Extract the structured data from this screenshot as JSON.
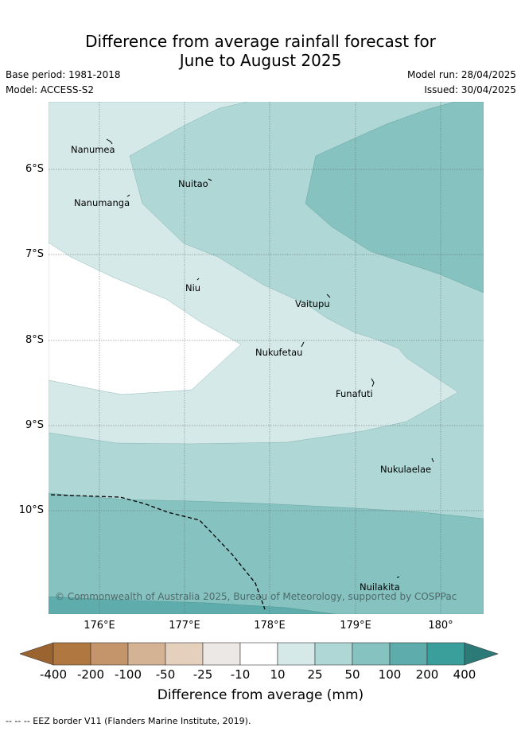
{
  "title": {
    "line1": "Difference from average rainfall forecast for",
    "line2": "June to August 2025"
  },
  "meta": {
    "base_period": "Base period: 1981-2018",
    "model": "Model: ACCESS-S2",
    "model_run": "Model run: 28/04/2025",
    "issued": "Issued: 30/04/2025"
  },
  "axes": {
    "y_ticks": [
      "6°S",
      "7°S",
      "8°S",
      "9°S",
      "10°S"
    ],
    "x_ticks": [
      "176°E",
      "177°E",
      "178°E",
      "179°E",
      "180°"
    ]
  },
  "places": [
    {
      "name": "Nanumea"
    },
    {
      "name": "Nuitao"
    },
    {
      "name": "Nanumanga"
    },
    {
      "name": "Niu"
    },
    {
      "name": "Vaitupu"
    },
    {
      "name": "Nukufetau"
    },
    {
      "name": "Funafuti"
    },
    {
      "name": "Nukulaelae"
    },
    {
      "name": "Nuilakita"
    }
  ],
  "copyright": "© Commonwealth of Australia 2025, Bureau of Meteorology, supported by COSPPac",
  "colorbar": {
    "labels": [
      "-400",
      "-200",
      "-100",
      "-50",
      "-25",
      "-10",
      "10",
      "25",
      "50",
      "100",
      "200",
      "400"
    ],
    "colors": [
      "#9a6330",
      "#b07840",
      "#c4956a",
      "#d4b394",
      "#e5cfbd",
      "#ece8e5",
      "#ffffff",
      "#d5e9e8",
      "#aed7d6",
      "#85c2c0",
      "#5eadac",
      "#3a9e9b",
      "#2c7a78"
    ],
    "title": "Difference from average (mm)"
  },
  "footer": "--  --  -- EEZ border V11 (Flanders Marine Institute, 2019)."
}
